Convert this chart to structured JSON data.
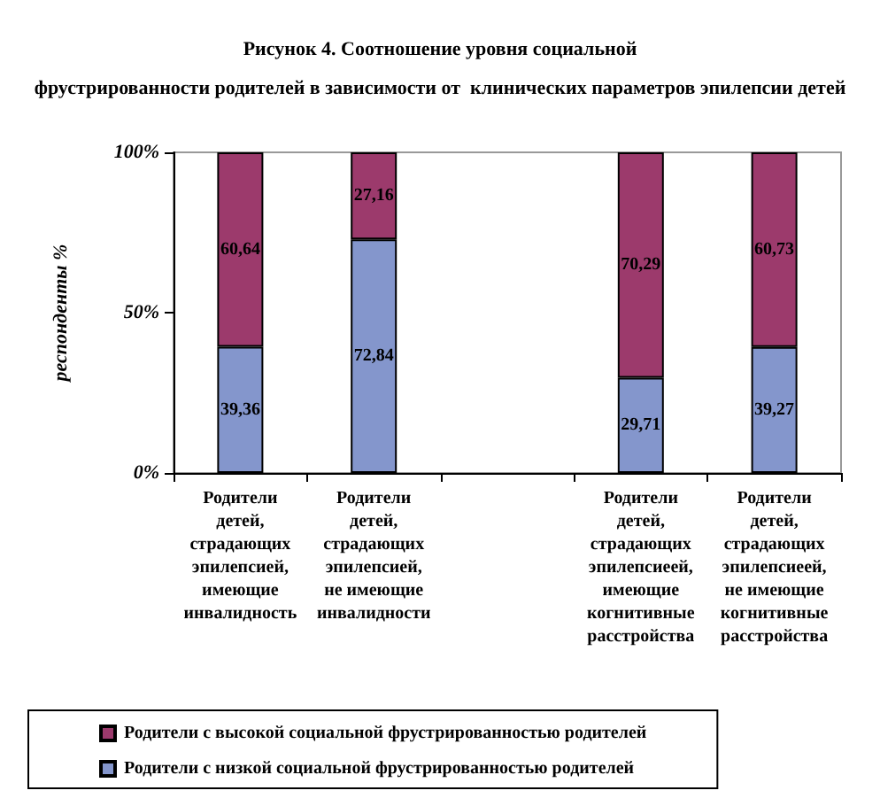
{
  "chart_data": {
    "type": "bar",
    "stacked": true,
    "title": "Рисунок 4. Соотношение уровня социальной\nфрустрированности родителей в зависимости от  клинических параметров эпилепсии детей",
    "ylabel": "респонденты %",
    "categories": [
      "Родители детей, страдающих эпилепсией, имеющие инвалидность",
      "Родители детей, страдающих эпилепсией, не имеющие инвалидности",
      null,
      "Родители детей, страдающих эпилепсиеей, имеющие когнитивные расстройства",
      "Родители детей, страдающих эпилепсиеей, не имеющие когнитивные расстройства"
    ],
    "series": [
      {
        "name": "Родители с низкой социальной фрустрированностью родителей",
        "color": "#8496cc",
        "values": [
          39.36,
          72.84,
          null,
          29.71,
          39.27
        ],
        "value_labels": [
          "39,36",
          "72,84",
          null,
          "29,71",
          "39,27"
        ]
      },
      {
        "name": "Родители с высокой социальной фрустрированностью родителей",
        "color": "#9c3a6c",
        "values": [
          60.64,
          27.16,
          null,
          70.29,
          60.73
        ],
        "value_labels": [
          "60,64",
          "27,16",
          null,
          "70,29",
          "60,73"
        ]
      }
    ],
    "ylim": [
      0,
      100
    ],
    "yticks": [
      {
        "value": 0,
        "label": "0%"
      },
      {
        "value": 50,
        "label": "50%"
      },
      {
        "value": 100,
        "label": "100%"
      }
    ],
    "legend": "bottom"
  }
}
